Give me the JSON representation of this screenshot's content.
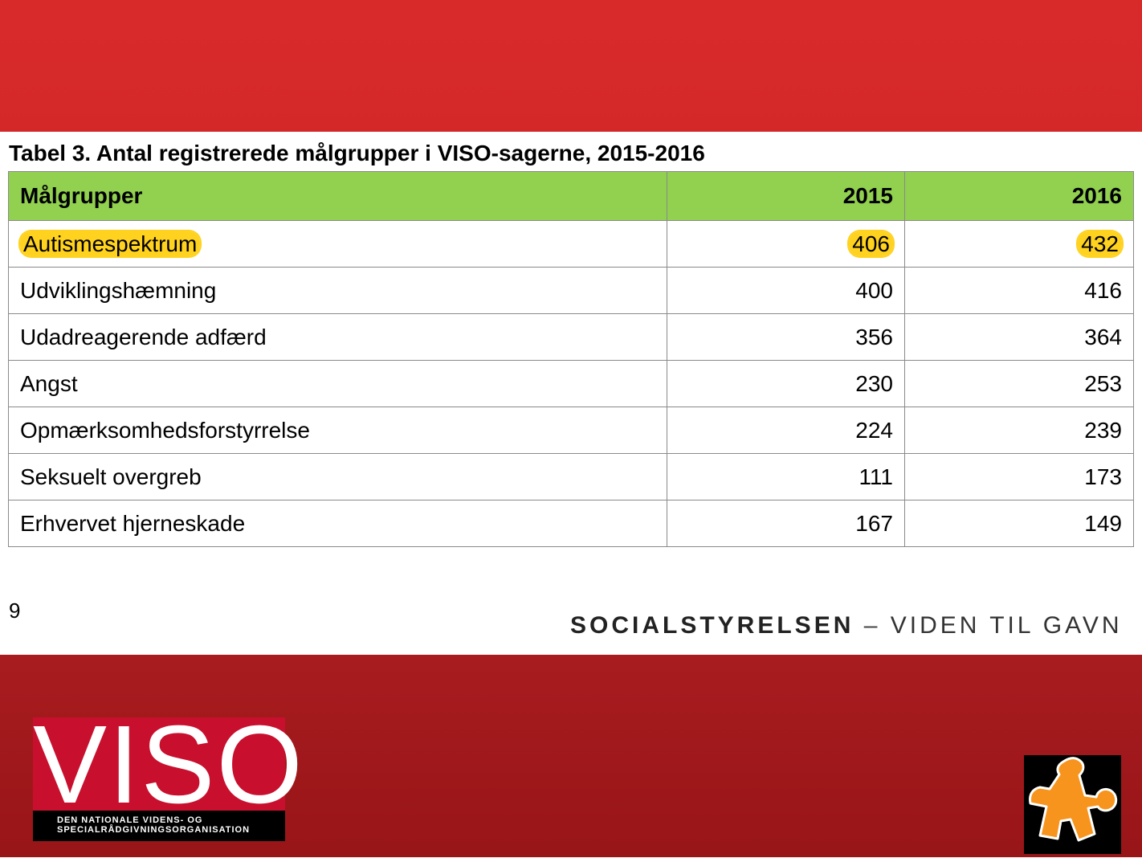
{
  "title": "Tabel 3. Antal registrerede målgrupper i VISO-sagerne, 2015-2016",
  "table": {
    "headers": [
      "Målgrupper",
      "2015",
      "2016"
    ],
    "rows": [
      [
        "Autismespektrum",
        "406",
        "432"
      ],
      [
        "Udviklingshæmning",
        "400",
        "416"
      ],
      [
        "Udadreagerende adfærd",
        "356",
        "364"
      ],
      [
        "Angst",
        "230",
        "253"
      ],
      [
        "Opmærksomhedsforstyrrelse",
        "224",
        "239"
      ],
      [
        "Seksuelt overgreb",
        "111",
        "173"
      ],
      [
        "Erhvervet hjerneskade",
        "167",
        "149"
      ]
    ],
    "highlight_color": "#ffd21f",
    "header_color": "#92d050"
  },
  "footer": {
    "page_number": "9",
    "brand": "SOCIALSTYRELSEN",
    "separator": "–",
    "tagline": "VIDEN TIL GAVN"
  },
  "logos": {
    "viso_word": "VISO",
    "viso_line1": "DEN NATIONALE VIDENS- OG",
    "viso_line2": "SPECIALRÅDGIVNINGSORGANISATION",
    "puzzle_icon": "puzzle-piece-icon",
    "puzzle_color": "#f7941d"
  }
}
